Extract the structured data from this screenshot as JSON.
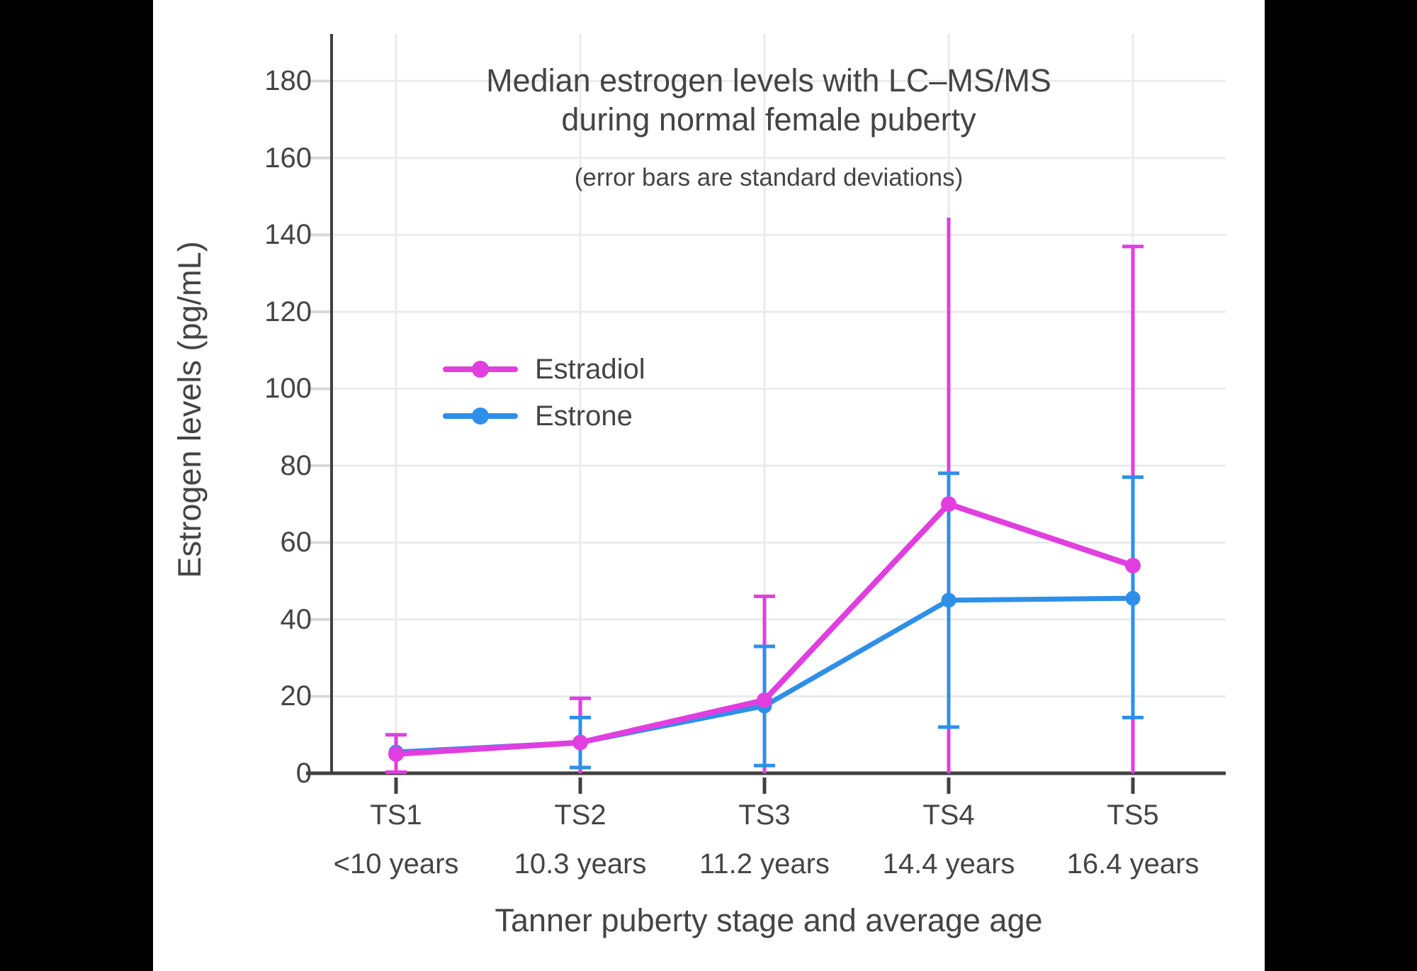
{
  "header": {
    "title_line1": "Median estrogen levels with LC–MS/MS",
    "title_line2": "during normal female puberty",
    "subtitle": "(error bars are standard deviations)"
  },
  "axes": {
    "y_title": "Estrogen levels (pg/mL)",
    "x_title": "Tanner puberty stage and average age"
  },
  "legend": {
    "items": [
      {
        "label": "Estradiol"
      },
      {
        "label": "Estrone"
      }
    ]
  },
  "colors": {
    "background": "#000000",
    "panel": "#ffffff",
    "text": "#444444",
    "axis": "#404040",
    "grid": "#ebebeb",
    "tick_light": "#d9d9d9",
    "estradiol": "#E13EE0",
    "estrone": "#2E8FE8"
  },
  "chart_data": {
    "type": "line",
    "title": "Median estrogen levels with LC–MS/MS during normal female puberty",
    "subtitle": "(error bars are standard deviations)",
    "xlabel": "Tanner puberty stage and average age",
    "ylabel": "Estrogen levels (pg/mL)",
    "categories": [
      "TS1",
      "TS2",
      "TS3",
      "TS4",
      "TS5"
    ],
    "category_ages": [
      "<10 years",
      "10.3 years",
      "11.2 years",
      "14.4 years",
      "16.4 years"
    ],
    "yticks": [
      0,
      20,
      40,
      60,
      80,
      100,
      120,
      140,
      160,
      180
    ],
    "ylim": [
      0,
      192
    ],
    "grid": true,
    "legend_position": "inside-upper-left",
    "error_bar_meaning": "standard deviations",
    "series": [
      {
        "name": "Estradiol",
        "color": "#E13EE0",
        "values": [
          5,
          8,
          19,
          70,
          54
        ],
        "error_upper": [
          10,
          19.5,
          46,
          144.5,
          137
        ],
        "error_lower": [
          0.3,
          0,
          0,
          0,
          0
        ],
        "upper_cap": [
          true,
          true,
          true,
          false,
          true
        ],
        "lower_cap": [
          true,
          false,
          false,
          false,
          false
        ]
      },
      {
        "name": "Estrone",
        "color": "#2E8FE8",
        "values": [
          5.5,
          8,
          17.5,
          45,
          45.5
        ],
        "error_upper": [
          null,
          14.5,
          33,
          78,
          77
        ],
        "error_lower": [
          null,
          1.5,
          2,
          12,
          14.5
        ],
        "upper_cap": [
          false,
          true,
          true,
          true,
          true
        ],
        "lower_cap": [
          false,
          true,
          true,
          true,
          true
        ]
      }
    ]
  }
}
